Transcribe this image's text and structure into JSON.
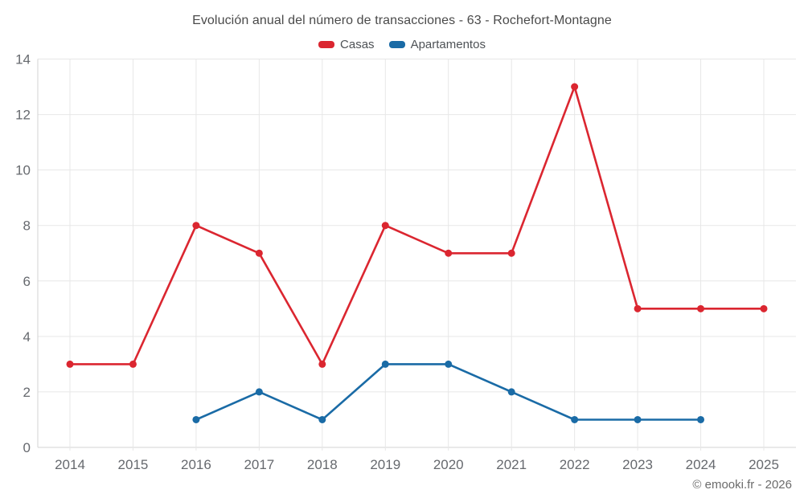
{
  "chart_data": {
    "type": "line",
    "title": "Evolución anual del número de transacciones - 63 - Rochefort-Montagne",
    "categories": [
      "2014",
      "2015",
      "2016",
      "2017",
      "2018",
      "2019",
      "2020",
      "2021",
      "2022",
      "2023",
      "2024",
      "2025"
    ],
    "series": [
      {
        "name": "Casas",
        "color": "#db2630",
        "values": [
          3,
          3,
          8,
          7,
          3,
          8,
          7,
          7,
          13,
          5,
          5,
          5
        ]
      },
      {
        "name": "Apartamentos",
        "color": "#1a6ba6",
        "values": [
          null,
          null,
          1,
          2,
          1,
          3,
          3,
          2,
          1,
          1,
          1,
          null
        ]
      }
    ],
    "ylim": [
      0,
      14
    ],
    "ytick_step": 2,
    "yticks": [
      0,
      2,
      4,
      6,
      8,
      10,
      12,
      14
    ],
    "grid": true,
    "legend_position": "top",
    "xlabel": "",
    "ylabel": ""
  },
  "attribution": "© emooki.fr - 2026",
  "colors": {
    "background": "#ffffff",
    "title_text": "#4a4a4a",
    "legend_text": "#4e5256",
    "axis_text": "#66696e",
    "gridline": "#e7e7e7",
    "axis_line": "#d3d3d3"
  }
}
